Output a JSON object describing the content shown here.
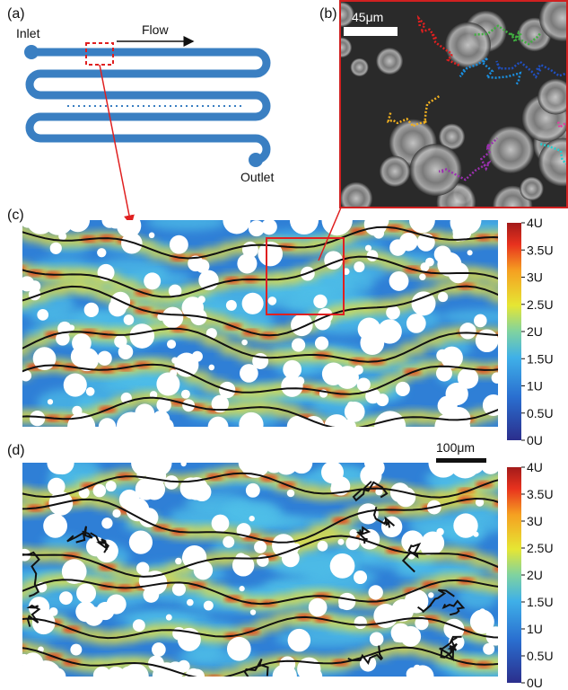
{
  "panels": {
    "a": {
      "label": "(a)",
      "flow": "Flow",
      "inlet": "Inlet",
      "outlet": "Outlet"
    },
    "b": {
      "label": "(b)",
      "scale_bar": "45μm"
    },
    "c": {
      "label": "(c)"
    },
    "d": {
      "label": "(d)",
      "scale_bar": "100μm"
    }
  },
  "colorbar": {
    "lim": [
      0,
      4
    ],
    "ticks": [
      {
        "value": 0,
        "label": "0U"
      },
      {
        "value": 0.5,
        "label": "0.5U"
      },
      {
        "value": 1,
        "label": "1U"
      },
      {
        "value": 1.5,
        "label": "1.5U"
      },
      {
        "value": 2,
        "label": "2U"
      },
      {
        "value": 2.5,
        "label": "2.5U"
      },
      {
        "value": 3,
        "label": "3U"
      },
      {
        "value": 3.5,
        "label": "3.5U"
      },
      {
        "value": 4,
        "label": "4U"
      }
    ]
  }
}
